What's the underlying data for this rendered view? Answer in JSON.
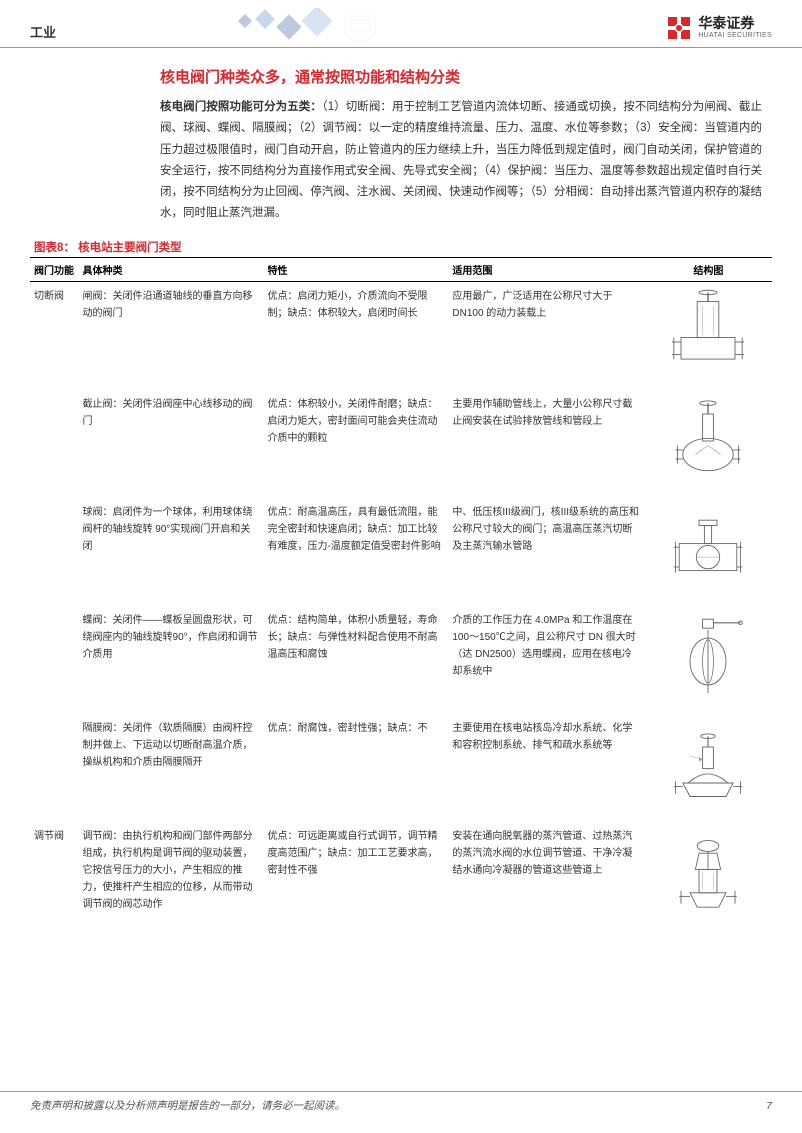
{
  "header": {
    "category": "工业",
    "logo_cn": "华泰证券",
    "logo_en": "HUATAI SECURITIES",
    "logo_color": "#d9272e",
    "deco_color1": "#4a7cc4",
    "deco_color2": "#2e4f8f"
  },
  "section": {
    "title": "核电阀门种类众多，通常按照功能和结构分类",
    "title_color": "#d9272e",
    "para_lead": "核电阀门按照功能可分为五类：",
    "para_body": "（1）切断阀：用于控制工艺管道内流体切断、接通或切换，按不同结构分为闸阀、截止阀、球阀、蝶阀、隔膜阀；（2）调节阀：以一定的精度维持流量、压力、温度、水位等参数；（3）安全阀：当管道内的压力超过极限值时，阀门自动开启，防止管道内的压力继续上升，当压力降低到规定值时，阀门自动关闭，保护管道的安全运行，按不同结构分为直接作用式安全阀、先导式安全阀；（4）保护阀：当压力、温度等参数超出规定值时自行关闭，按不同结构分为止回阀、停汽阀、注水阀、关闭阀、快速动作阀等；（5）分相阀：自动排出蒸汽管道内积存的凝结水，同时阻止蒸汽泄漏。"
  },
  "table": {
    "caption": "图表8： 核电站主要阀门类型",
    "caption_color": "#d9272e",
    "headers": [
      "阀门功能",
      "具体种类",
      "特性",
      "适用范围",
      "结构图"
    ],
    "border_top_color": "#000000",
    "font_size_pt": 10,
    "rows": [
      {
        "func": "切断阀",
        "type": "闸阀：关闭件沿通道轴线的垂直方向移动的阀门",
        "feat": "优点：启闭力矩小，介质流向不受限制；缺点：体积较大，启闭时间长",
        "scope": "应用最广，广泛适用在公称尺寸大于DN100 的动力装载上",
        "img": "gate"
      },
      {
        "func": "",
        "type": "截止阀：关闭件沿阀座中心线移动的阀门",
        "feat": "优点：体积较小，关闭件耐磨；缺点：启闭力矩大，密封面间可能会夹住流动介质中的颗粒",
        "scope": "主要用作辅助管线上，大量小公称尺寸截止阀安装在试验排放管线和管段上",
        "img": "globe"
      },
      {
        "func": "",
        "type": "球阀：启闭件为一个球体，利用球体绕阀杆的轴线旋转 90°实现阀门开启和关闭",
        "feat": "优点：耐高温高压，具有最低流阻，能完全密封和快速启闭；缺点：加工比较有难度，压力-温度额定值受密封件影响",
        "scope": "中、低压核III级阀门，核III级系统的高压和公称尺寸较大的阀门；高温高压蒸汽切断及主蒸汽输水管路",
        "img": "ball"
      },
      {
        "func": "",
        "type": "蝶阀：关闭件——蝶板呈圆盘形状，可绕阀座内的轴线旋转90°，作启闭和调节介质用",
        "feat": "优点：结构简单，体积小质量轻，寿命长；缺点：与弹性材料配合使用不耐高温高压和腐蚀",
        "scope": "介质的工作压力在 4.0MPa 和工作温度在 100～150℃之间，且公称尺寸 DN 很大时（达 DN2500）选用蝶阀，应用在核电冷却系统中",
        "img": "butterfly"
      },
      {
        "func": "",
        "type": "隔膜阀：关闭件（软质隔膜）由阀杆控制并做上、下运动以切断耐高温介质，操纵机构和介质由隔膜隔开",
        "feat": "优点：耐腐蚀，密封性强；缺点：不",
        "scope": "主要使用在核电站核岛冷却水系统、化学和容积控制系统、排气和疏水系统等",
        "img": "diaphragm"
      },
      {
        "func": "调节阀",
        "type": "调节阀：由执行机构和阀门部件两部分组成，执行机构是调节阀的驱动装置，它按信号压力的大小，产生相应的推力，使推杆产生相应的位移，从而带动调节阀的阀芯动作",
        "feat": "优点：可远距离或自行式调节，调节精度高范围广；缺点：加工工艺要求高，密封性不强",
        "scope": "安装在通向脱氧器的蒸汽管道、过热蒸汽的蒸汽流水阀的水位调节管道、干净冷凝结水通向冷凝器的管道这些管道上",
        "img": "control"
      }
    ]
  },
  "footer": {
    "disclaimer": "免责声明和披露以及分析师声明是报告的一部分，请务必一起阅读。",
    "page": "7"
  }
}
